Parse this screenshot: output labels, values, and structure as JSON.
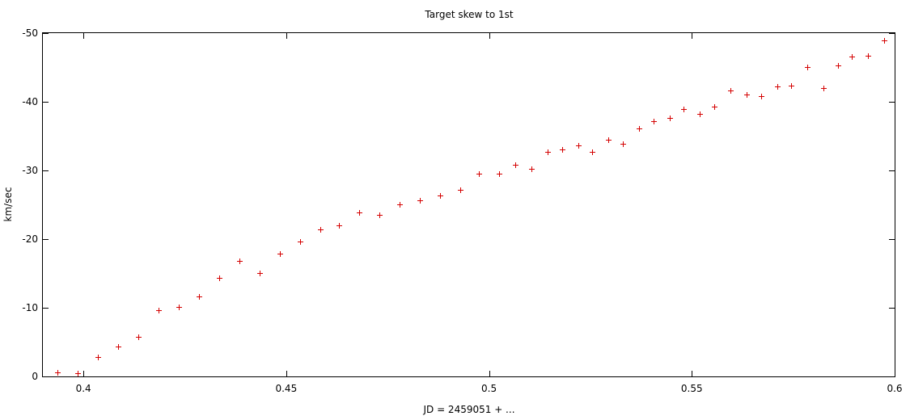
{
  "chart_data": {
    "type": "scatter",
    "title": "Target skew to 1st",
    "xlabel": "JD = 2459051 + ...",
    "ylabel": "km/sec",
    "xlim": [
      0.39,
      0.6
    ],
    "ylim": [
      0,
      -50
    ],
    "xticks": [
      0.4,
      0.45,
      0.5,
      0.55,
      0.6
    ],
    "xtick_labels": [
      "0.4",
      "0.45",
      "0.5",
      "0.55",
      "0.6"
    ],
    "yticks": [
      0,
      -10,
      -20,
      -30,
      -40,
      -50
    ],
    "ytick_labels": [
      "0",
      "-10",
      "-20",
      "-30",
      "-40",
      "-50"
    ],
    "grid": false,
    "marker": "+",
    "color": "#d40000",
    "series": [
      {
        "points": [
          [
            0.3935,
            -0.6
          ],
          [
            0.3985,
            -0.5
          ],
          [
            0.4035,
            -2.8
          ],
          [
            0.4085,
            -4.4
          ],
          [
            0.4135,
            -5.8
          ],
          [
            0.4185,
            -9.6
          ],
          [
            0.4235,
            -10.1
          ],
          [
            0.4285,
            -11.7
          ],
          [
            0.4335,
            -14.3
          ],
          [
            0.4385,
            -16.8
          ],
          [
            0.4435,
            -15.1
          ],
          [
            0.4485,
            -17.9
          ],
          [
            0.4535,
            -19.6
          ],
          [
            0.4585,
            -21.4
          ],
          [
            0.463,
            -22.0
          ],
          [
            0.468,
            -23.9
          ],
          [
            0.473,
            -23.5
          ],
          [
            0.478,
            -25.1
          ],
          [
            0.483,
            -25.7
          ],
          [
            0.488,
            -26.4
          ],
          [
            0.493,
            -27.2
          ],
          [
            0.4975,
            -29.5
          ],
          [
            0.5025,
            -29.5
          ],
          [
            0.5065,
            -30.8
          ],
          [
            0.5105,
            -30.2
          ],
          [
            0.5145,
            -32.7
          ],
          [
            0.518,
            -33.1
          ],
          [
            0.522,
            -33.6
          ],
          [
            0.5255,
            -32.7
          ],
          [
            0.5295,
            -34.5
          ],
          [
            0.533,
            -33.9
          ],
          [
            0.537,
            -36.1
          ],
          [
            0.5405,
            -37.2
          ],
          [
            0.5445,
            -37.7
          ],
          [
            0.548,
            -38.9
          ],
          [
            0.552,
            -38.2
          ],
          [
            0.5555,
            -39.3
          ],
          [
            0.5595,
            -41.6
          ],
          [
            0.5635,
            -41.1
          ],
          [
            0.567,
            -40.8
          ],
          [
            0.571,
            -42.2
          ],
          [
            0.5745,
            -42.3
          ],
          [
            0.5785,
            -45.1
          ],
          [
            0.5825,
            -42.0
          ],
          [
            0.586,
            -45.3
          ],
          [
            0.5895,
            -46.6
          ],
          [
            0.5935,
            -46.7
          ],
          [
            0.5975,
            -48.9
          ]
        ]
      }
    ]
  }
}
